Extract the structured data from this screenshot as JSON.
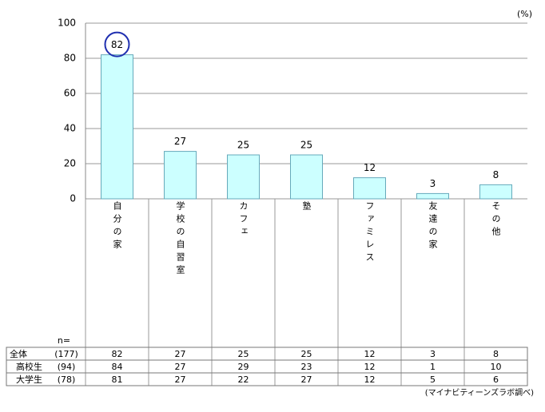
{
  "chart_data": {
    "type": "bar",
    "unit": "(%)",
    "categories": [
      "自分の家",
      "学校の自習室",
      "カフェ",
      "塾",
      "ファミレス",
      "友達の家",
      "その他"
    ],
    "values": [
      82,
      27,
      25,
      25,
      12,
      3,
      8
    ],
    "color": "#ccffff",
    "edge_color": "#66aabb",
    "ylim": [
      0,
      100
    ],
    "yticks": [
      0,
      20,
      40,
      60,
      80,
      100
    ],
    "grid": true,
    "table": {
      "n_label": "n=",
      "rows": [
        {
          "group": "全体",
          "n": "(177)"
        },
        {
          "group": "高校生",
          "n": "(94)",
          "values": [
            84,
            27,
            29,
            23,
            12,
            1,
            10
          ]
        },
        {
          "group": "大学生",
          "n": "(78)",
          "values": [
            81,
            27,
            22,
            27,
            12,
            5,
            6
          ]
        }
      ]
    },
    "source": "(マイナビティーンズラボ調べ)"
  }
}
